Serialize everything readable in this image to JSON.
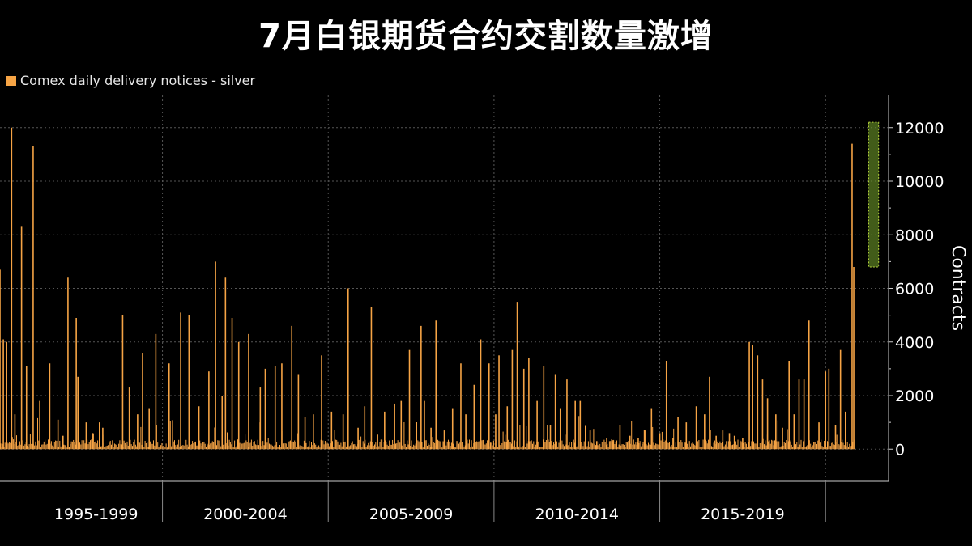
{
  "title": "7月白银期货合约交割数量激增",
  "legend": {
    "label": "Comex daily delivery notices - silver",
    "color": "#f6a445"
  },
  "highlight_color": "#6e9a2a",
  "chart_data": {
    "type": "bar",
    "series": [
      {
        "name": "Comex daily delivery notices - silver",
        "color": "#f6a445"
      }
    ],
    "x_categories": [
      "1995-1999",
      "2000-2004",
      "2005-2009",
      "2010-2014",
      "2015-2019"
    ],
    "ylabel": "Contracts",
    "yticks": [
      0,
      2000,
      4000,
      6000,
      8000,
      10000,
      12000
    ],
    "ylim": [
      -1200,
      13200
    ],
    "xlim": [
      1994.1,
      2020.9
    ],
    "grid": true,
    "axis_side": "right",
    "highlight": {
      "x_from": 2020.3,
      "x_to": 2020.6,
      "y_from": 6800,
      "y_to": 12200
    },
    "spikes": [
      [
        1994.1,
        6700
      ],
      [
        1994.2,
        4100
      ],
      [
        1994.3,
        4000
      ],
      [
        1994.45,
        12000
      ],
      [
        1994.55,
        1300
      ],
      [
        1994.75,
        8300
      ],
      [
        1994.9,
        3100
      ],
      [
        1995.1,
        11300
      ],
      [
        1995.3,
        1800
      ],
      [
        1995.6,
        3200
      ],
      [
        1995.85,
        1100
      ],
      [
        1996.0,
        500
      ],
      [
        1996.15,
        6400
      ],
      [
        1996.4,
        4900
      ],
      [
        1996.45,
        2700
      ],
      [
        1996.7,
        1000
      ],
      [
        1996.9,
        600
      ],
      [
        1997.1,
        1000
      ],
      [
        1997.2,
        800
      ],
      [
        1997.8,
        5000
      ],
      [
        1998.0,
        2300
      ],
      [
        1998.25,
        1300
      ],
      [
        1998.4,
        3600
      ],
      [
        1998.6,
        1500
      ],
      [
        1998.8,
        4300
      ],
      [
        1999.2,
        3200
      ],
      [
        1999.55,
        5100
      ],
      [
        1999.8,
        5000
      ],
      [
        2000.1,
        1600
      ],
      [
        2000.4,
        2900
      ],
      [
        2000.6,
        7000
      ],
      [
        2000.8,
        2000
      ],
      [
        2000.9,
        6400
      ],
      [
        2001.1,
        4900
      ],
      [
        2001.3,
        4000
      ],
      [
        2001.6,
        4300
      ],
      [
        2001.95,
        2300
      ],
      [
        2002.1,
        3000
      ],
      [
        2002.4,
        3100
      ],
      [
        2002.6,
        3200
      ],
      [
        2002.9,
        4600
      ],
      [
        2003.1,
        2800
      ],
      [
        2003.3,
        1200
      ],
      [
        2003.55,
        1300
      ],
      [
        2003.8,
        3500
      ],
      [
        2004.1,
        1400
      ],
      [
        2004.45,
        1300
      ],
      [
        2004.6,
        6000
      ],
      [
        2004.9,
        800
      ],
      [
        2005.1,
        1600
      ],
      [
        2005.3,
        5300
      ],
      [
        2005.7,
        1400
      ],
      [
        2006.0,
        1700
      ],
      [
        2006.2,
        1800
      ],
      [
        2006.45,
        3700
      ],
      [
        2006.8,
        4600
      ],
      [
        2006.9,
        1800
      ],
      [
        2007.1,
        800
      ],
      [
        2007.25,
        4800
      ],
      [
        2007.5,
        700
      ],
      [
        2007.75,
        1500
      ],
      [
        2008.0,
        3200
      ],
      [
        2008.15,
        1300
      ],
      [
        2008.4,
        2400
      ],
      [
        2008.6,
        4100
      ],
      [
        2008.85,
        3200
      ],
      [
        2009.05,
        1300
      ],
      [
        2009.15,
        3500
      ],
      [
        2009.4,
        1600
      ],
      [
        2009.55,
        3700
      ],
      [
        2009.7,
        5500
      ],
      [
        2009.9,
        3000
      ],
      [
        2010.05,
        3400
      ],
      [
        2010.3,
        1800
      ],
      [
        2010.5,
        3100
      ],
      [
        2010.7,
        900
      ],
      [
        2010.85,
        2800
      ],
      [
        2011.0,
        1500
      ],
      [
        2011.2,
        2600
      ],
      [
        2011.45,
        1800
      ],
      [
        2011.6,
        1800
      ],
      [
        2011.9,
        700
      ],
      [
        2012.1,
        300
      ],
      [
        2012.4,
        400
      ],
      [
        2012.6,
        300
      ],
      [
        2012.8,
        900
      ],
      [
        2013.1,
        500
      ],
      [
        2013.35,
        400
      ],
      [
        2013.55,
        700
      ],
      [
        2013.75,
        1500
      ],
      [
        2014.0,
        600
      ],
      [
        2014.2,
        3300
      ],
      [
        2014.4,
        400
      ],
      [
        2014.55,
        1200
      ],
      [
        2014.8,
        1000
      ],
      [
        2015.1,
        1600
      ],
      [
        2015.35,
        1300
      ],
      [
        2015.5,
        2700
      ],
      [
        2015.7,
        500
      ],
      [
        2015.9,
        700
      ],
      [
        2016.1,
        600
      ],
      [
        2016.25,
        500
      ],
      [
        2016.5,
        400
      ],
      [
        2016.7,
        4000
      ],
      [
        2016.8,
        3900
      ],
      [
        2016.95,
        3500
      ],
      [
        2017.1,
        2600
      ],
      [
        2017.25,
        1900
      ],
      [
        2017.5,
        1300
      ],
      [
        2017.7,
        800
      ],
      [
        2017.9,
        3300
      ],
      [
        2018.05,
        1300
      ],
      [
        2018.2,
        2600
      ],
      [
        2018.35,
        2600
      ],
      [
        2018.5,
        4800
      ],
      [
        2018.8,
        1000
      ],
      [
        2019.0,
        2900
      ],
      [
        2019.1,
        3000
      ],
      [
        2019.3,
        900
      ],
      [
        2019.45,
        3700
      ],
      [
        2019.6,
        1400
      ],
      [
        2019.8,
        11400
      ],
      [
        2019.85,
        6800
      ]
    ]
  }
}
